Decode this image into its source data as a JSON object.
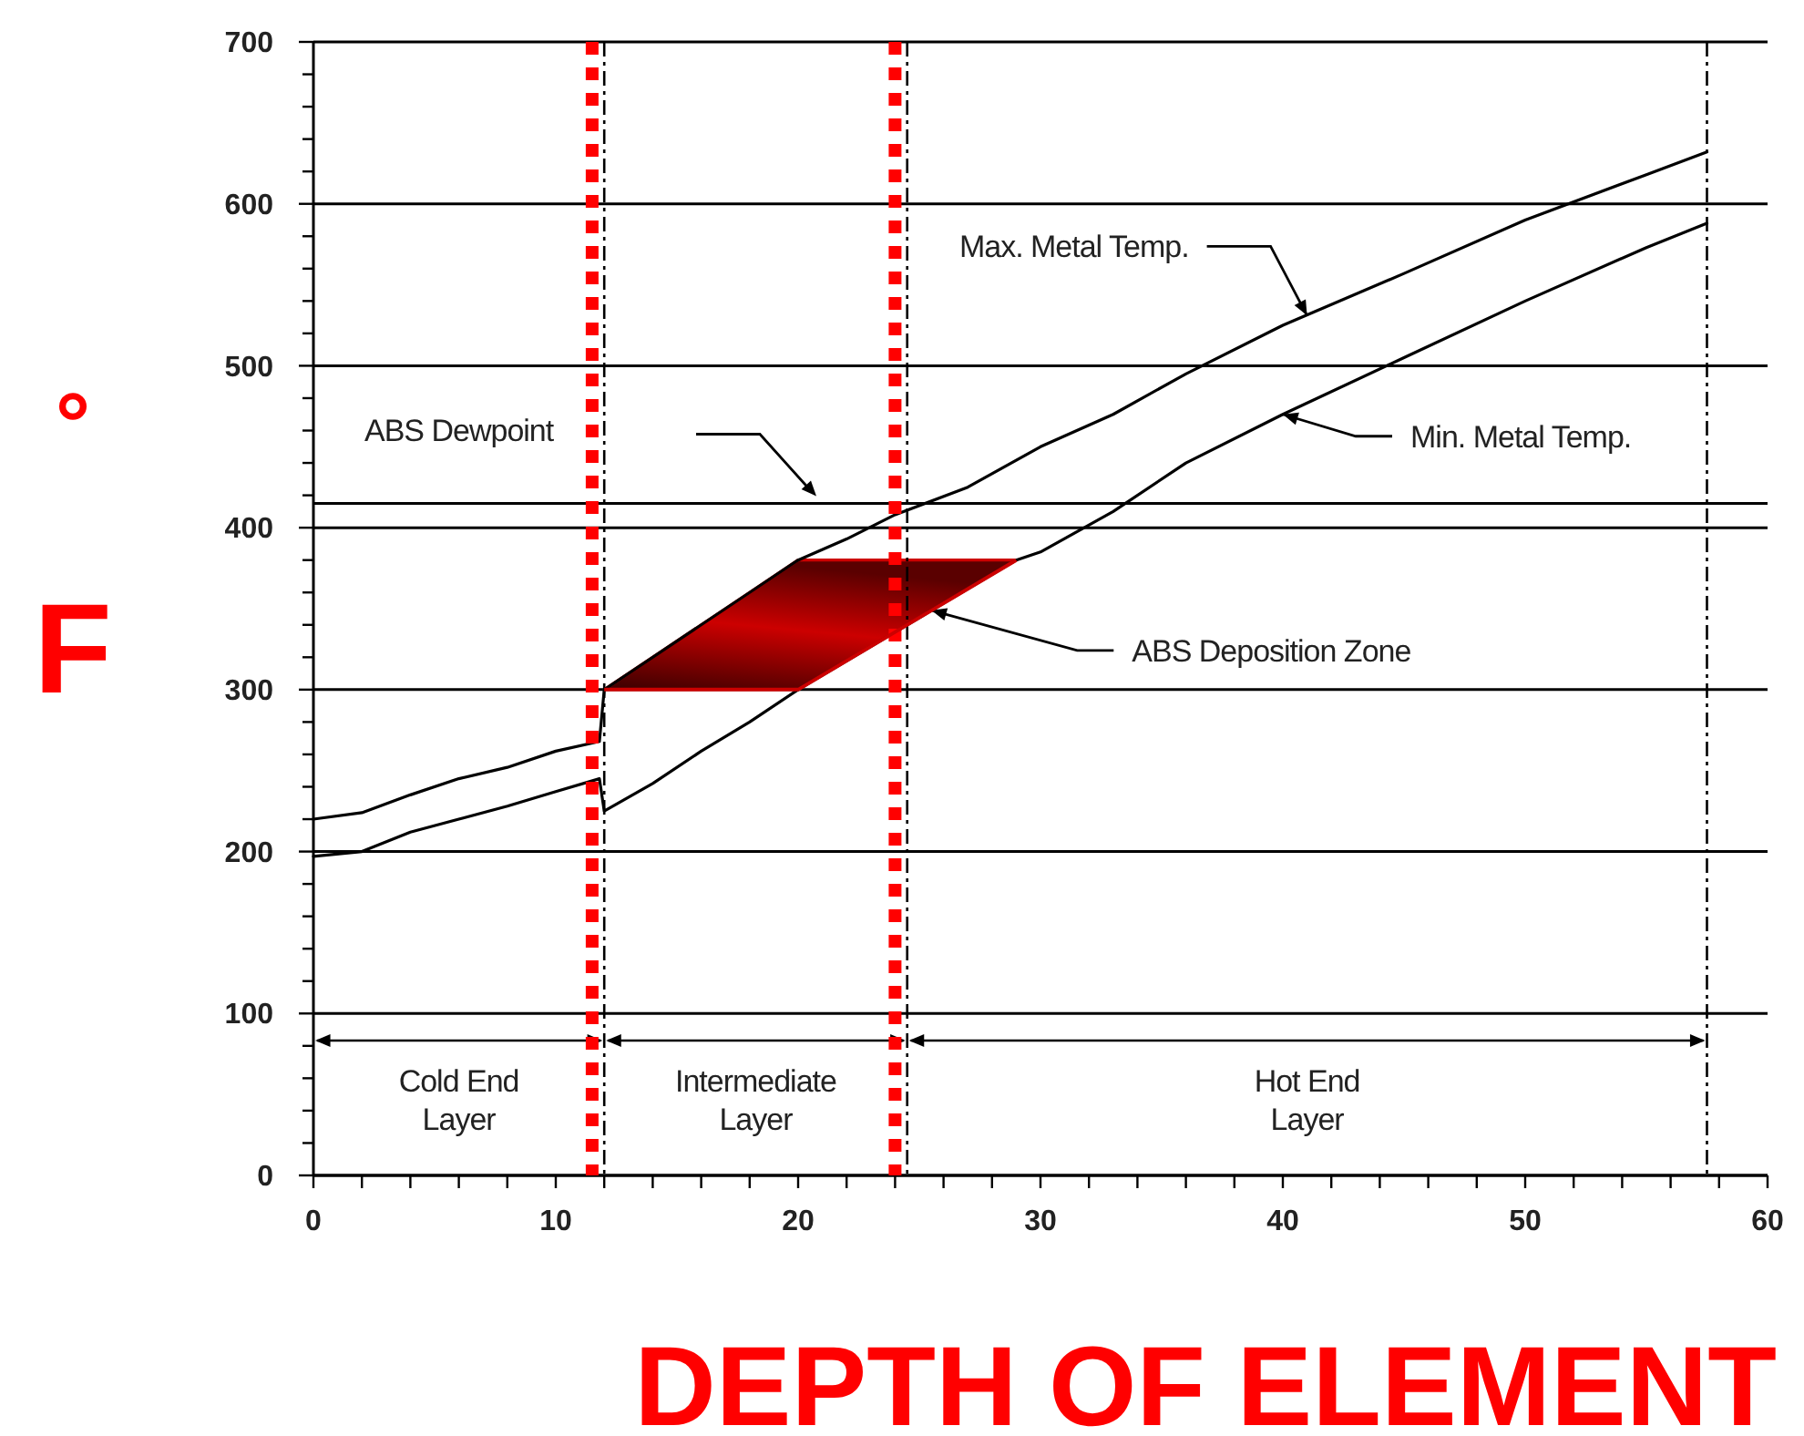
{
  "chart_data": {
    "type": "line",
    "xlabel": "DEPTH OF ELEMENT",
    "ylabel": "$^{°}$F",
    "xlim": [
      0,
      60
    ],
    "ylim": [
      0,
      700
    ],
    "xticks": [
      0,
      {
        "value": 2,
        "label": null
      },
      {
        "value": 4,
        "label": null
      },
      {
        "value": 6,
        "label": null
      },
      {
        "value": 8,
        "label": null
      },
      10,
      {
        "value": 12,
        "label": null
      },
      {
        "value": 14,
        "label": null
      },
      {
        "value": 16,
        "label": null
      },
      {
        "value": 18,
        "label": null
      },
      20,
      {
        "value": 22,
        "label": null
      },
      {
        "value": 24,
        "label": null
      },
      {
        "value": 26,
        "label": null
      },
      {
        "value": 28,
        "label": null
      },
      30,
      {
        "value": 32,
        "label": null
      },
      {
        "value": 34,
        "label": null
      },
      {
        "value": 36,
        "label": null
      },
      {
        "value": 38,
        "label": null
      },
      40,
      {
        "value": 42,
        "label": null
      },
      {
        "value": 44,
        "label": null
      },
      {
        "value": 46,
        "label": null
      },
      {
        "value": 48,
        "label": null
      },
      50,
      {
        "value": 52,
        "label": null
      },
      {
        "value": 54,
        "label": null
      },
      {
        "value": 56,
        "label": null
      },
      {
        "value": 58,
        "label": null
      },
      60
    ],
    "yticks": [
      0,
      {
        "value": 20,
        "label": null
      },
      {
        "value": 40,
        "label": null
      },
      {
        "value": 60,
        "label": null
      },
      {
        "value": 80,
        "label": null
      },
      100,
      {
        "value": 120,
        "label": null
      },
      {
        "value": 140,
        "label": null
      },
      {
        "value": 160,
        "label": null
      },
      {
        "value": 180,
        "label": null
      },
      200,
      {
        "value": 220,
        "label": null
      },
      {
        "value": 240,
        "label": null
      },
      {
        "value": 260,
        "label": null
      },
      {
        "value": 280,
        "label": null
      },
      300,
      {
        "value": 320,
        "label": null
      },
      {
        "value": 340,
        "label": null
      },
      {
        "value": 360,
        "label": null
      },
      {
        "value": 380,
        "label": null
      },
      400,
      {
        "value": 420,
        "label": null
      },
      {
        "value": 440,
        "label": null
      },
      {
        "value": 460,
        "label": null
      },
      {
        "value": 480,
        "label": null
      },
      500,
      {
        "value": 520,
        "label": null
      },
      {
        "value": 540,
        "label": null
      },
      {
        "value": 560,
        "label": null
      },
      {
        "value": 580,
        "label": null
      },
      600,
      {
        "value": 620,
        "label": null
      },
      {
        "value": 640,
        "label": null
      },
      {
        "value": 660,
        "label": null
      },
      {
        "value": 680,
        "label": null
      },
      700
    ],
    "grid": "y",
    "marker": "none",
    "line_style": "solid",
    "series": [
      {
        "color": "#cc0000",
        "x": [
          12,
          20,
          29
        ],
        "values": [
          300,
          380,
          380
        ],
        "lower": [
          300,
          300,
          380
        ],
        "upper": [
          300,
          380,
          380
        ]
      },
      {
        "color": "#000000",
        "x": [
          0,
          2,
          4,
          6,
          8,
          10,
          11.8,
          12,
          14,
          16,
          18,
          20,
          22,
          24,
          27,
          30,
          33,
          36,
          40,
          45,
          50,
          55,
          57.5
        ],
        "values": [
          220,
          224,
          235,
          245,
          252,
          262,
          268,
          300,
          320,
          340,
          360,
          380,
          393,
          408,
          425,
          450,
          470,
          495,
          525,
          557,
          590,
          618,
          632
        ]
      },
      {
        "color": "#000000",
        "x": [
          0,
          2,
          4,
          6,
          8,
          10,
          11.8,
          12,
          14,
          16,
          18,
          20,
          29,
          30,
          33,
          36,
          40,
          45,
          50,
          55,
          57.5
        ],
        "values": [
          197,
          200,
          212,
          220,
          228,
          237,
          245,
          225,
          242,
          262,
          280,
          300,
          380,
          385,
          410,
          440,
          470,
          505,
          540,
          573,
          588
        ]
      }
    ],
    "ref_lines": [
      {
        "axis": "y",
        "value": 415,
        "label": "ABS Dewpoint",
        "color": "#000000",
        "line_style": "solid"
      },
      {
        "axis": "x",
        "value": 12,
        "color": "#000000",
        "line_style": "dashed"
      },
      {
        "axis": "x",
        "value": 24.5,
        "color": "#000000",
        "line_style": "dashed"
      },
      {
        "axis": "x",
        "value": 57.5,
        "color": "#000000",
        "line_style": "dashed"
      },
      {
        "axis": "x",
        "value": 11.5,
        "color": "#ff0000",
        "line_style": "dotted"
      },
      {
        "axis": "x",
        "value": 24,
        "color": "#ff0000",
        "line_style": "dotted"
      }
    ],
    "annotations": [
      {
        "text": "Max. Metal Temp.",
        "x": 41,
        "y": 531
      },
      {
        "text": "Min. Metal Temp.",
        "x": 40,
        "y": 470
      },
      {
        "text": "ABS Deposition Zone",
        "x": 25.5,
        "y": 349
      },
      "Cold End Layer",
      "Intermediate Layer",
      "Hot End Layer"
    ]
  }
}
